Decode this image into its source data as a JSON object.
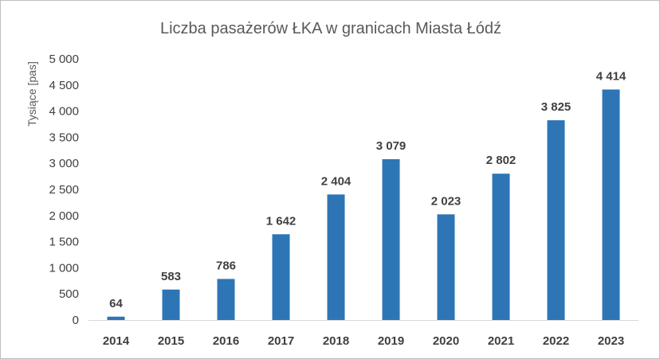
{
  "chart_data": {
    "type": "bar",
    "title": "Liczba pasażerów ŁKA w granicach  Miasta Łódź",
    "xlabel": "",
    "ylabel": "Tysiące [pas]",
    "categories": [
      "2014",
      "2015",
      "2016",
      "2017",
      "2018",
      "2019",
      "2020",
      "2021",
      "2022",
      "2023"
    ],
    "values": [
      64,
      583,
      786,
      1642,
      2404,
      3079,
      2023,
      2802,
      3825,
      4414
    ],
    "value_labels": [
      "64",
      "583",
      "786",
      "1 642",
      "2 404",
      "3 079",
      "2 023",
      "2 802",
      "3 825",
      "4 414"
    ],
    "yticks": [
      0,
      500,
      1000,
      1500,
      2000,
      2500,
      3000,
      3500,
      4000,
      4500,
      5000
    ],
    "ytick_labels": [
      "0",
      "500",
      "1 000",
      "1 500",
      "2 000",
      "2 500",
      "3 000",
      "3 500",
      "4 000",
      "4 500",
      "5 000"
    ],
    "ylim": [
      0,
      5000
    ],
    "grid": false,
    "legend": "none",
    "bar_color": "#2e75b6"
  }
}
